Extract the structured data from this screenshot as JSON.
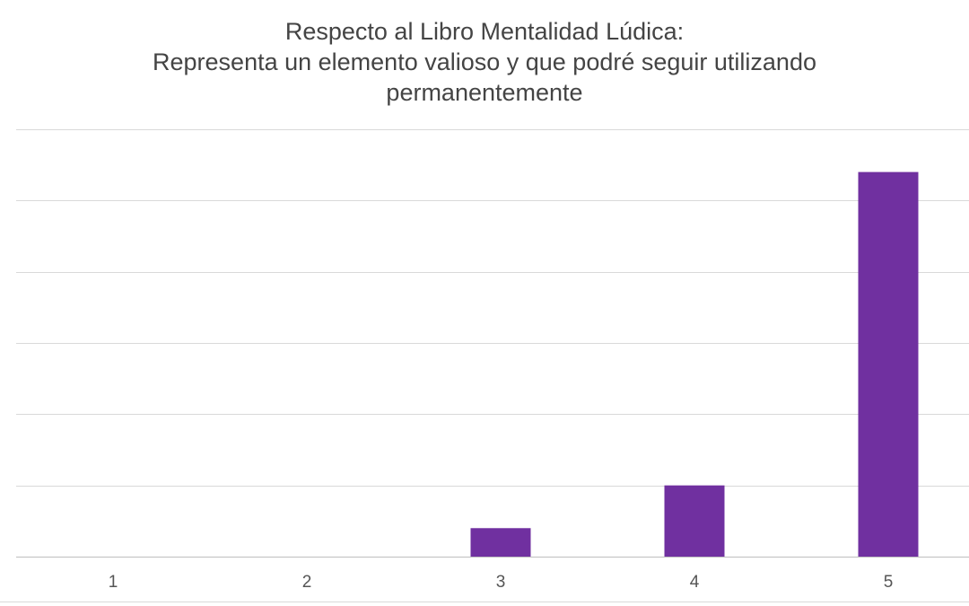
{
  "chart_data": {
    "type": "bar",
    "title_lines": [
      "Respecto al Libro Mentalidad Lúdica:",
      "Representa un elemento valioso y que podré seguir utilizando",
      "permanentemente"
    ],
    "categories": [
      "1",
      "2",
      "3",
      "4",
      "5"
    ],
    "values": [
      0,
      0,
      2,
      5,
      27
    ],
    "ylim": [
      0,
      30
    ],
    "y_tick_step": 5,
    "y_tick_labels_visible": false,
    "grid": true,
    "legend": "none",
    "xlabel": "",
    "ylabel": "",
    "colors": {
      "bar": "#7030A0",
      "grid": "#d9d9d9",
      "axis": "#bfbfbf"
    }
  }
}
